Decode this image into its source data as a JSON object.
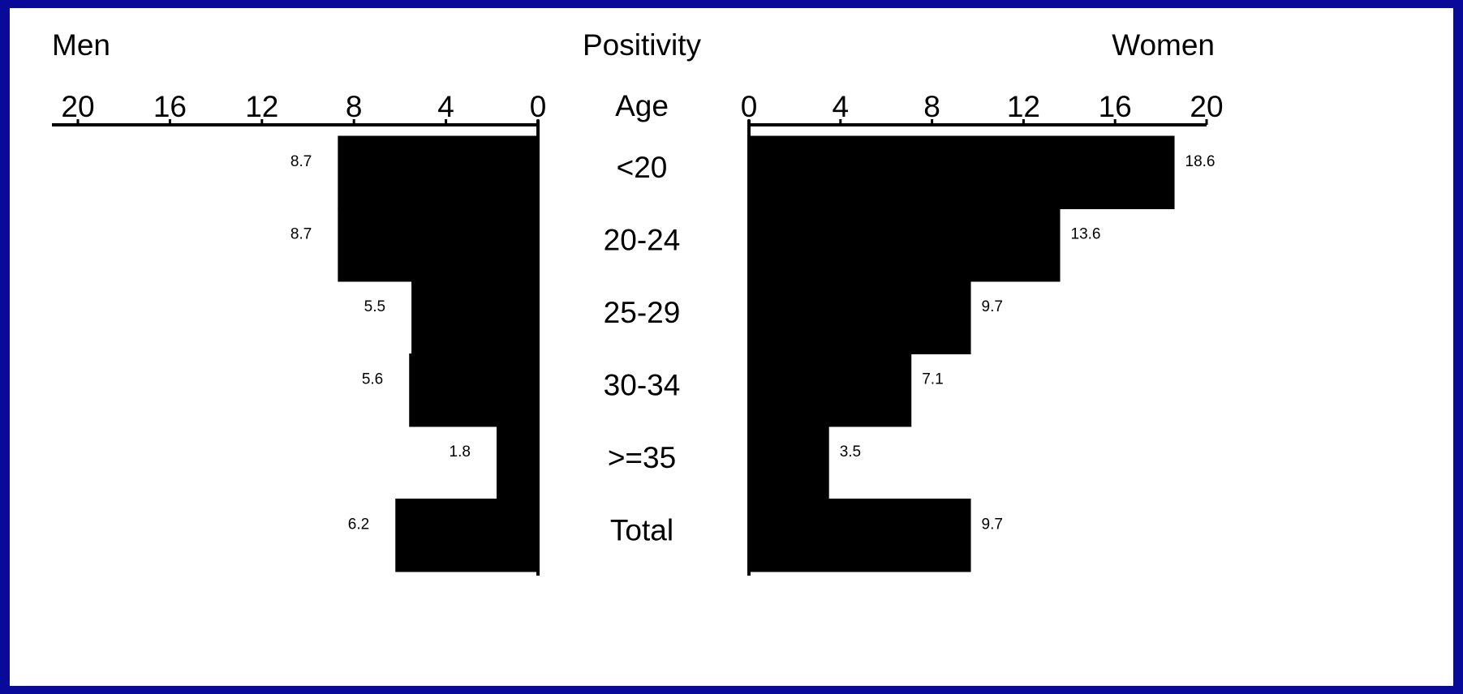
{
  "chart_data": {
    "type": "bar",
    "orientation": "horizontal-butterfly",
    "headings": {
      "left": "Men",
      "center": "Positivity",
      "right": "Women"
    },
    "category_axis_label": "Age",
    "categories": [
      "<20",
      "20-24",
      "25-29",
      "30-34",
      ">=35",
      "Total"
    ],
    "series": [
      {
        "name": "Men",
        "values": [
          8.7,
          8.7,
          5.5,
          5.6,
          1.8,
          6.2
        ],
        "labels": [
          "8.7",
          "8.7",
          "5.5",
          "5.6",
          "1.8",
          "6.2"
        ]
      },
      {
        "name": "Women",
        "values": [
          18.6,
          13.6,
          9.7,
          7.1,
          3.5,
          9.7
        ],
        "labels": [
          "18.6",
          "13.6",
          "9.7",
          "7.1",
          "3.5",
          "9.7"
        ]
      }
    ],
    "xlim": [
      0,
      20
    ],
    "ticks": [
      "0",
      "4",
      "8",
      "12",
      "16",
      "20"
    ],
    "grid": false,
    "colors": {
      "bars": "#000000",
      "border": "#0a0a9a",
      "background": "#ffffff"
    }
  }
}
